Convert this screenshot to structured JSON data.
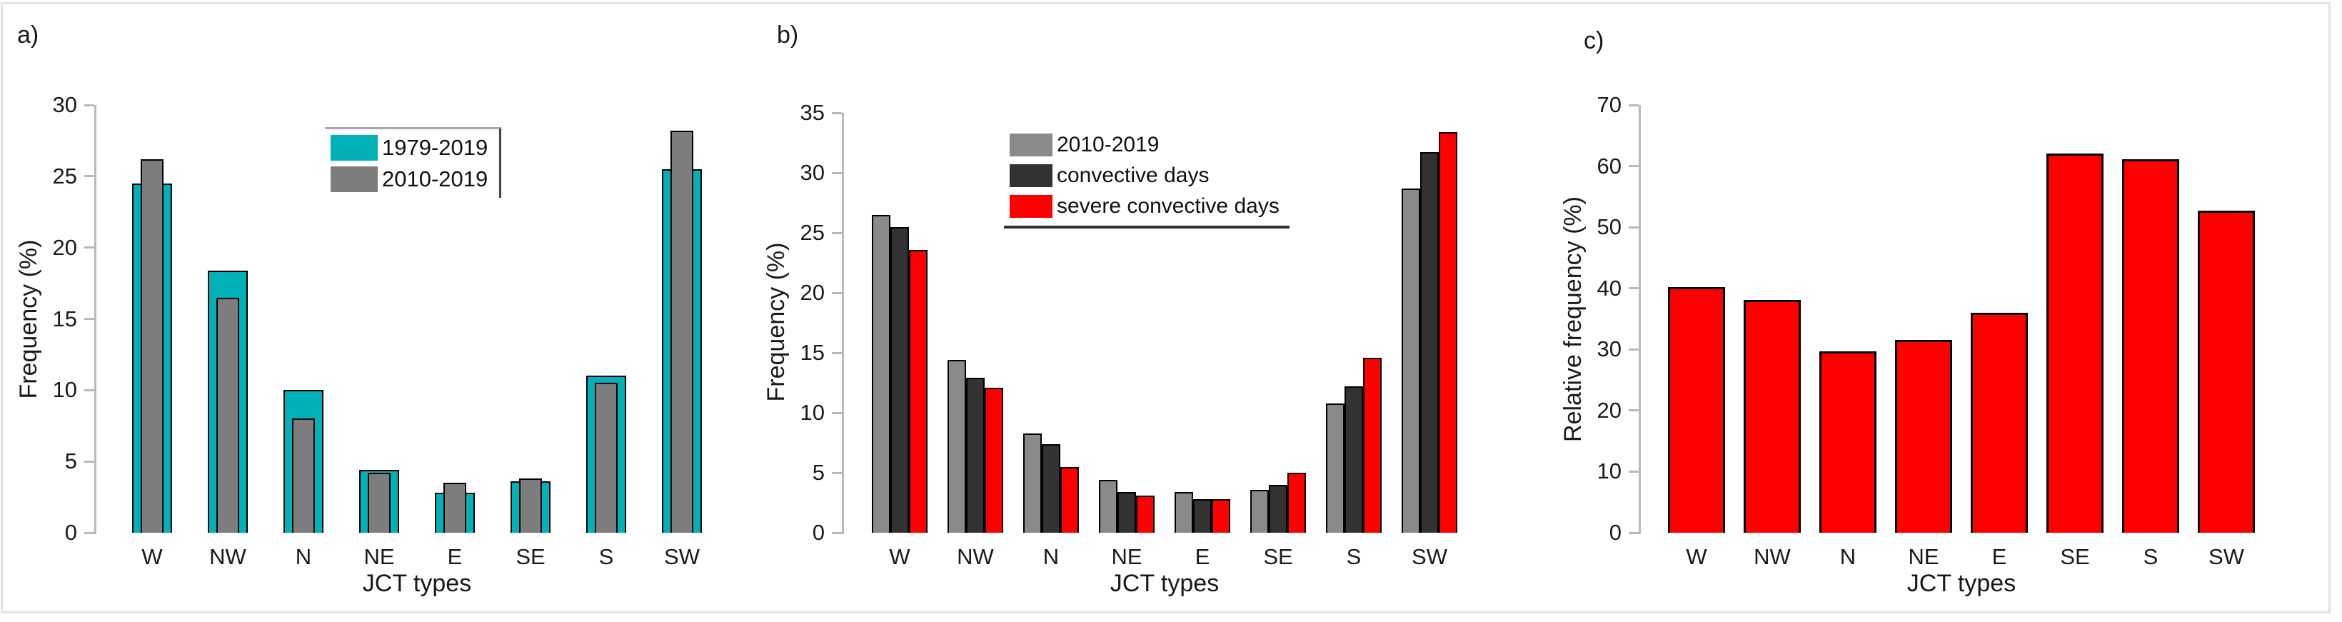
{
  "page": {
    "background": "#ffffff",
    "frame_color": "#e3e3e3",
    "axis_color": "#b9b9b9",
    "text_color": "#1a1a1a",
    "bar_edge_color": "#000000"
  },
  "chart_data": [
    {
      "type": "bar",
      "panel_label": "a)",
      "title": "",
      "xlabel": "JCT types",
      "ylabel": "Frequency (%)",
      "ylim": [
        0,
        30
      ],
      "yticks": [
        0,
        5,
        10,
        15,
        20,
        25,
        30
      ],
      "categories": [
        "W",
        "NW",
        "N",
        "NE",
        "E",
        "SE",
        "S",
        "SW"
      ],
      "bar_mode": "overlay",
      "grid": false,
      "legend_position": "upper-center-inside",
      "series": [
        {
          "name": "1979-2019",
          "color": "#00b1b8",
          "values": [
            24.5,
            18.4,
            10.0,
            4.4,
            2.8,
            3.6,
            11.0,
            25.5
          ]
        },
        {
          "name": "2010-2019",
          "color": "#7d7d7d",
          "values": [
            26.2,
            16.5,
            8.0,
            4.2,
            3.5,
            3.8,
            10.5,
            28.2
          ]
        }
      ]
    },
    {
      "type": "bar",
      "panel_label": "b)",
      "title": "",
      "xlabel": "JCT types",
      "ylabel": "Frequency (%)",
      "ylim": [
        0,
        35
      ],
      "yticks": [
        0,
        5,
        10,
        15,
        20,
        25,
        30,
        35
      ],
      "categories": [
        "W",
        "NW",
        "N",
        "NE",
        "E",
        "SE",
        "S",
        "SW"
      ],
      "bar_mode": "grouped",
      "grid": false,
      "legend_position": "upper-center-inside",
      "series": [
        {
          "name": "2010-2019",
          "color": "#8a8a8a",
          "values": [
            26.5,
            14.4,
            8.3,
            4.4,
            3.4,
            3.6,
            10.8,
            28.7
          ]
        },
        {
          "name": "convective days",
          "color": "#323232",
          "values": [
            25.5,
            12.9,
            7.4,
            3.4,
            2.8,
            4.0,
            12.2,
            31.7
          ]
        },
        {
          "name": "severe convective days",
          "color": "#ff0000",
          "values": [
            23.6,
            12.1,
            5.5,
            3.1,
            2.8,
            5.0,
            14.6,
            33.4
          ]
        }
      ]
    },
    {
      "type": "bar",
      "panel_label": "c)",
      "title": "",
      "xlabel": "JCT types",
      "ylabel": "Relative frequency (%)",
      "ylim": [
        0,
        70
      ],
      "yticks": [
        0,
        10,
        20,
        30,
        40,
        50,
        60,
        70
      ],
      "categories": [
        "W",
        "NW",
        "N",
        "NE",
        "E",
        "SE",
        "S",
        "SW"
      ],
      "bar_mode": "single",
      "grid": false,
      "series": [
        {
          "name": "",
          "color": "#ff0000",
          "values": [
            40.2,
            38.1,
            29.7,
            31.6,
            36.0,
            62.0,
            61.1,
            52.7
          ]
        }
      ]
    }
  ]
}
